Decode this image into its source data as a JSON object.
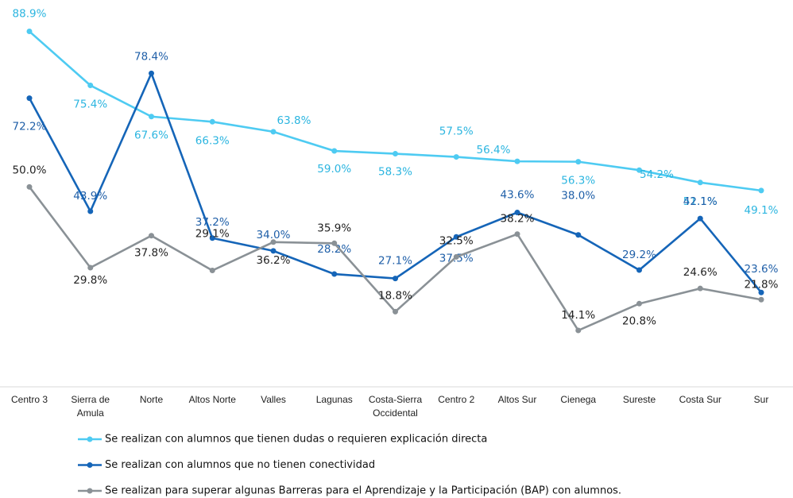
{
  "chart_data": {
    "type": "line",
    "categories": [
      "Centro 3",
      "Sierra de Amula",
      "Norte",
      "Altos Norte",
      "Valles",
      "Lagunas",
      "Costa-Sierra Occidental",
      "Centro 2",
      "Altos Sur",
      "Cienega",
      "Sureste",
      "Costa Sur",
      "Sur"
    ],
    "ylim": [
      0,
      90
    ],
    "series": [
      {
        "name": "Se realizan con alumnos que tienen dudas o requieren explicación directa",
        "color": "#4ecbf2",
        "values": [
          88.9,
          75.4,
          67.6,
          66.3,
          63.8,
          59.0,
          58.3,
          57.5,
          56.4,
          56.3,
          54.2,
          51.1,
          49.1
        ],
        "value_labels": [
          "88.9%",
          "75.4%",
          "67.6%",
          "66.3%",
          "63.8%",
          "59.0%",
          "58.3%",
          "57.5%",
          "56.4%",
          "56.3%",
          "54.2%",
          "51.1%",
          "49.1%"
        ]
      },
      {
        "name": "Se realizan con alumnos que no tienen conectividad",
        "color": "#1565b8",
        "values": [
          72.2,
          43.9,
          78.4,
          37.2,
          34.0,
          28.2,
          27.1,
          37.5,
          43.6,
          38.0,
          29.2,
          42.1,
          23.6
        ],
        "value_labels": [
          "72.2%",
          "43.9%",
          "78.4%",
          "37.2%",
          "34.0%",
          "28.2%",
          "27.1%",
          "37.5%",
          "43.6%",
          "38.0%",
          "29.2%",
          "42.1%",
          "23.6%"
        ]
      },
      {
        "name": "Se realizan para superar algunas Barreras para el Aprendizaje y la Participación (BAP) con alumnos.",
        "color": "#8a9196",
        "values": [
          50.0,
          29.8,
          37.8,
          29.1,
          36.2,
          35.9,
          18.8,
          32.5,
          38.2,
          14.1,
          20.8,
          24.6,
          21.8
        ],
        "value_labels": [
          "50.0%",
          "29.8%",
          "37.8%",
          "29.1%",
          "36.2%",
          "35.9%",
          "18.8%",
          "32.5%",
          "38.2%",
          "14.1%",
          "20.8%",
          "24.6%",
          "21.8%"
        ]
      }
    ]
  }
}
